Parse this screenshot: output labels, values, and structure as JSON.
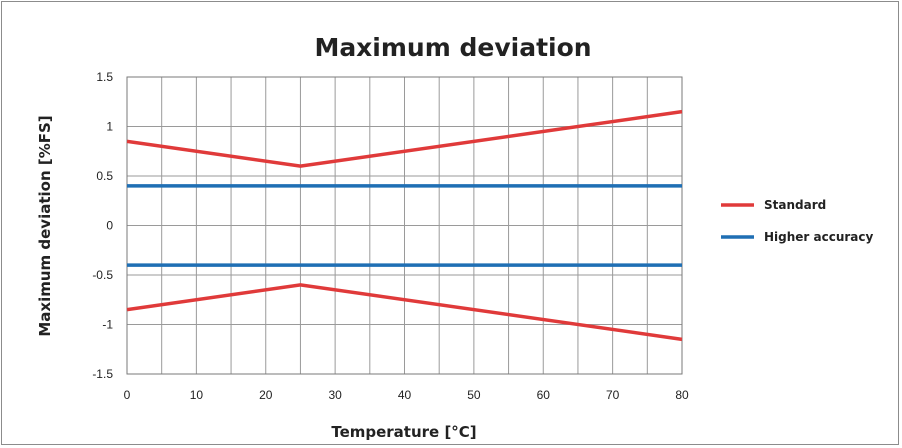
{
  "chart_data": {
    "type": "line",
    "title": "Maximum deviation",
    "xlabel": "Temperature [°C]",
    "ylabel": "Maximum deviation [%FS]",
    "xlim": [
      0,
      80
    ],
    "ylim": [
      -1.5,
      1.5
    ],
    "x_ticks": [
      "0",
      "10",
      "20",
      "30",
      "40",
      "50",
      "60",
      "70",
      "80"
    ],
    "x_tick_values": [
      0,
      10,
      20,
      30,
      40,
      50,
      60,
      70,
      80
    ],
    "y_ticks": [
      "1.5",
      "1",
      "0.5",
      "0",
      "-0.5",
      "-1",
      "-1.5"
    ],
    "y_tick_values": [
      1.5,
      1,
      0.5,
      0,
      -0.5,
      -1,
      -1.5
    ],
    "x_minor_gridline_step": 5,
    "y_gridline_step": 0.5,
    "grid": true,
    "legend_position": "right",
    "series": [
      {
        "name": "Standard",
        "color": "#e03a3a",
        "x": [
          0,
          25,
          80
        ],
        "y": [
          0.85,
          0.6,
          1.15
        ]
      },
      {
        "name": "",
        "legend_group": "Standard",
        "color": "#e03a3a",
        "x": [
          0,
          25,
          80
        ],
        "y": [
          -0.85,
          -0.6,
          -1.15
        ]
      },
      {
        "name": "Higher accuracy",
        "color": "#1f6fb4",
        "x": [
          0,
          80
        ],
        "y": [
          0.4,
          0.4
        ]
      },
      {
        "name": "",
        "legend_group": "Higher accuracy",
        "color": "#1f6fb4",
        "x": [
          0,
          80
        ],
        "y": [
          -0.4,
          -0.4
        ]
      }
    ],
    "legend": [
      {
        "label": "Standard",
        "color": "#e03a3a"
      },
      {
        "label": "Higher accuracy",
        "color": "#1f6fb4"
      }
    ]
  }
}
